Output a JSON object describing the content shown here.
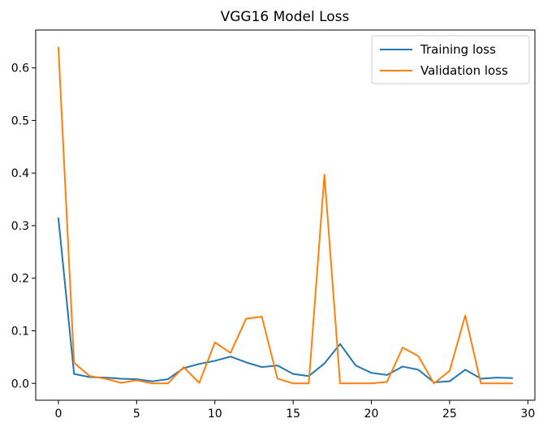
{
  "chart_data": {
    "type": "line",
    "title": "VGG16 Model Loss",
    "xlabel": "",
    "ylabel": "",
    "xlim": [
      -1.45,
      30.45
    ],
    "ylim": [
      -0.032,
      0.672
    ],
    "xticks": [
      0,
      5,
      10,
      15,
      20,
      25,
      30
    ],
    "yticks": [
      0.0,
      0.1,
      0.2,
      0.3,
      0.4,
      0.5,
      0.6
    ],
    "ytick_labels": [
      "0.0",
      "0.1",
      "0.2",
      "0.3",
      "0.4",
      "0.5",
      "0.6"
    ],
    "grid": false,
    "legend_position": "top-right",
    "x": [
      0,
      1,
      2,
      3,
      4,
      5,
      6,
      7,
      8,
      9,
      10,
      11,
      12,
      13,
      14,
      15,
      16,
      17,
      18,
      19,
      20,
      21,
      22,
      23,
      24,
      25,
      26,
      27,
      28,
      29
    ],
    "series": [
      {
        "name": "Training loss",
        "color": "#1f77b4",
        "values": [
          0.314,
          0.018,
          0.012,
          0.011,
          0.009,
          0.008,
          0.004,
          0.008,
          0.029,
          0.037,
          0.043,
          0.051,
          0.04,
          0.031,
          0.034,
          0.018,
          0.014,
          0.038,
          0.075,
          0.034,
          0.02,
          0.016,
          0.032,
          0.026,
          0.002,
          0.004,
          0.026,
          0.009,
          0.011,
          0.01
        ]
      },
      {
        "name": "Validation loss",
        "color": "#ff7f0e",
        "values": [
          0.639,
          0.039,
          0.014,
          0.009,
          0.001,
          0.006,
          0.0,
          0.0,
          0.031,
          0.001,
          0.078,
          0.058,
          0.123,
          0.127,
          0.009,
          0.0,
          0.0,
          0.397,
          0.0,
          0.0,
          0.0,
          0.003,
          0.068,
          0.052,
          0.0,
          0.024,
          0.129,
          0.0,
          0.0,
          0.0
        ]
      }
    ]
  }
}
